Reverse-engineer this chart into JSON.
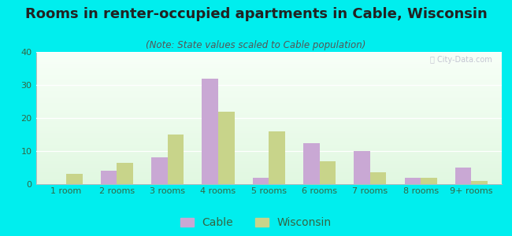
{
  "title": "Rooms in renter-occupied apartments in Cable, Wisconsin",
  "subtitle": "(Note: State values scaled to Cable population)",
  "categories": [
    "1 room",
    "2 rooms",
    "3 rooms",
    "4 rooms",
    "5 rooms",
    "6 rooms",
    "7 rooms",
    "8 rooms",
    "9+ rooms"
  ],
  "cable_values": [
    0,
    4,
    8,
    32,
    2,
    12.5,
    10,
    2,
    5
  ],
  "wisconsin_values": [
    3,
    6.5,
    15,
    22,
    16,
    7,
    3.5,
    2,
    1
  ],
  "cable_color": "#c9a8d4",
  "wisconsin_color": "#c8d48a",
  "bg_color": "#00eeee",
  "ylim": [
    0,
    40
  ],
  "yticks": [
    0,
    10,
    20,
    30,
    40
  ],
  "bar_width": 0.32,
  "title_fontsize": 13,
  "subtitle_fontsize": 8.5,
  "tick_fontsize": 8,
  "legend_fontsize": 10,
  "title_color": "#222222",
  "subtitle_color": "#555555",
  "tick_color": "#336644",
  "grid_color": "#ddeedd",
  "watermark_text": "ⓘ City-Data.com"
}
